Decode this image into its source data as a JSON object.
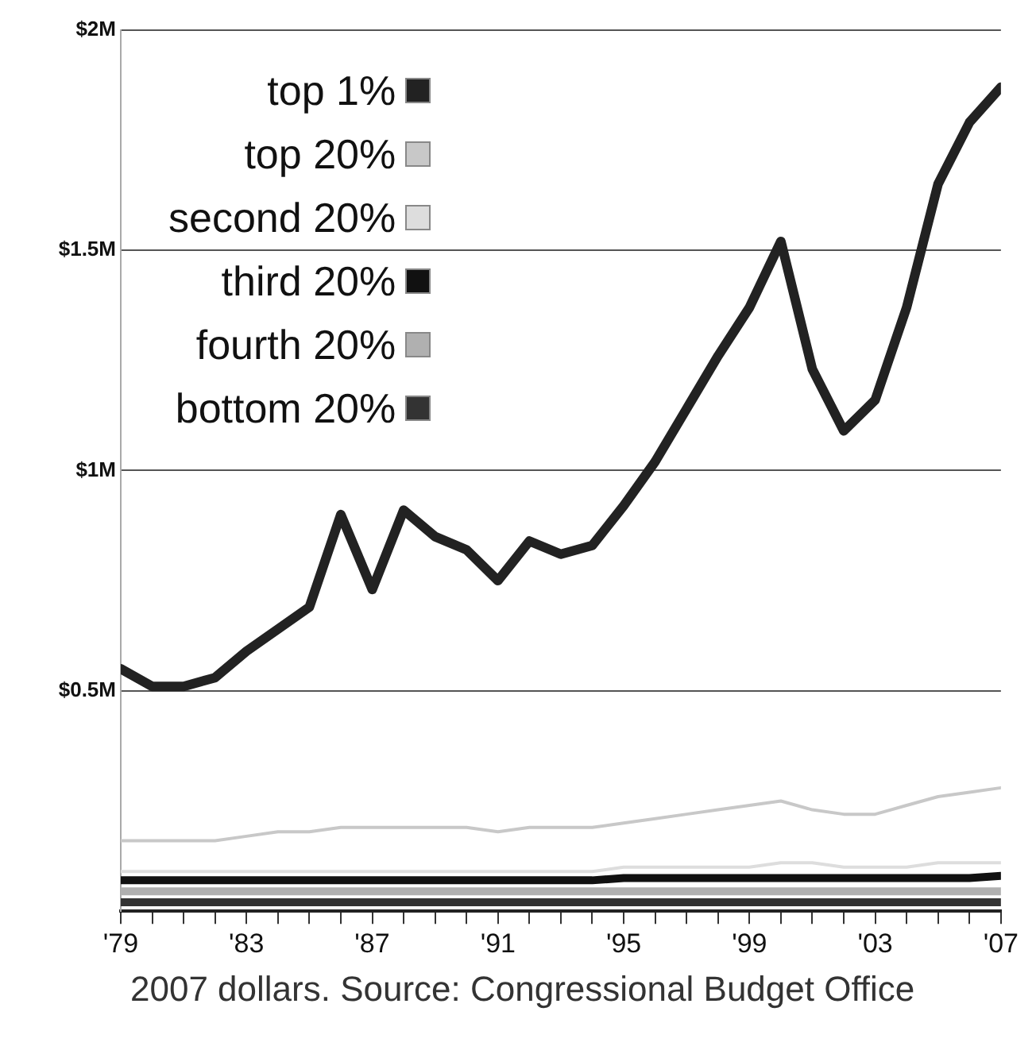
{
  "chart_data": {
    "type": "line",
    "x": [
      1979,
      1980,
      1981,
      1982,
      1983,
      1984,
      1985,
      1986,
      1987,
      1988,
      1989,
      1990,
      1991,
      1992,
      1993,
      1994,
      1995,
      1996,
      1997,
      1998,
      1999,
      2000,
      2001,
      2002,
      2003,
      2004,
      2005,
      2006,
      2007
    ],
    "series": [
      {
        "name": "top 1%",
        "color": "#222222",
        "values": [
          0.55,
          0.51,
          0.51,
          0.53,
          0.59,
          0.64,
          0.69,
          0.9,
          0.73,
          0.91,
          0.85,
          0.82,
          0.75,
          0.84,
          0.81,
          0.83,
          0.92,
          1.02,
          1.14,
          1.26,
          1.37,
          1.52,
          1.23,
          1.09,
          1.16,
          1.37,
          1.65,
          1.79,
          1.87
        ]
      },
      {
        "name": "top 20%",
        "color": "#c8c8c8",
        "values": [
          0.16,
          0.16,
          0.16,
          0.16,
          0.17,
          0.18,
          0.18,
          0.19,
          0.19,
          0.19,
          0.19,
          0.19,
          0.18,
          0.19,
          0.19,
          0.19,
          0.2,
          0.21,
          0.22,
          0.23,
          0.24,
          0.25,
          0.23,
          0.22,
          0.22,
          0.24,
          0.26,
          0.27,
          0.28
        ]
      },
      {
        "name": "second 20%",
        "color": "#dddddd",
        "values": [
          0.09,
          0.09,
          0.09,
          0.09,
          0.09,
          0.09,
          0.09,
          0.09,
          0.09,
          0.09,
          0.09,
          0.09,
          0.09,
          0.09,
          0.09,
          0.09,
          0.1,
          0.1,
          0.1,
          0.1,
          0.1,
          0.11,
          0.11,
          0.1,
          0.1,
          0.1,
          0.11,
          0.11,
          0.11
        ]
      },
      {
        "name": "third 20%",
        "color": "#111111",
        "values": [
          0.07,
          0.07,
          0.07,
          0.07,
          0.07,
          0.07,
          0.07,
          0.07,
          0.07,
          0.07,
          0.07,
          0.07,
          0.07,
          0.07,
          0.07,
          0.07,
          0.075,
          0.075,
          0.075,
          0.075,
          0.075,
          0.075,
          0.075,
          0.075,
          0.075,
          0.075,
          0.075,
          0.075,
          0.08
        ]
      },
      {
        "name": "fourth 20%",
        "color": "#b0b0b0",
        "values": [
          0.045,
          0.045,
          0.045,
          0.045,
          0.045,
          0.045,
          0.045,
          0.045,
          0.045,
          0.045,
          0.045,
          0.045,
          0.045,
          0.045,
          0.045,
          0.045,
          0.045,
          0.045,
          0.045,
          0.045,
          0.045,
          0.045,
          0.045,
          0.045,
          0.045,
          0.045,
          0.045,
          0.045,
          0.045
        ]
      },
      {
        "name": "bottom 20%",
        "color": "#333333",
        "values": [
          0.02,
          0.02,
          0.02,
          0.02,
          0.02,
          0.02,
          0.02,
          0.02,
          0.02,
          0.02,
          0.02,
          0.02,
          0.02,
          0.02,
          0.02,
          0.02,
          0.02,
          0.02,
          0.02,
          0.02,
          0.02,
          0.02,
          0.02,
          0.02,
          0.02,
          0.02,
          0.02,
          0.02,
          0.02
        ]
      }
    ],
    "xlim": [
      1979,
      2007
    ],
    "xticks": [
      {
        "value": 1979,
        "label": "'79"
      },
      {
        "value": 1980,
        "label": null
      },
      {
        "value": 1981,
        "label": null
      },
      {
        "value": 1982,
        "label": null
      },
      {
        "value": 1983,
        "label": "'83"
      },
      {
        "value": 1984,
        "label": null
      },
      {
        "value": 1985,
        "label": null
      },
      {
        "value": 1986,
        "label": null
      },
      {
        "value": 1987,
        "label": "'87"
      },
      {
        "value": 1988,
        "label": null
      },
      {
        "value": 1989,
        "label": null
      },
      {
        "value": 1990,
        "label": null
      },
      {
        "value": 1991,
        "label": "'91"
      },
      {
        "value": 1992,
        "label": null
      },
      {
        "value": 1993,
        "label": null
      },
      {
        "value": 1994,
        "label": null
      },
      {
        "value": 1995,
        "label": "'95"
      },
      {
        "value": 1996,
        "label": null
      },
      {
        "value": 1997,
        "label": null
      },
      {
        "value": 1998,
        "label": null
      },
      {
        "value": 1999,
        "label": "'99"
      },
      {
        "value": 2000,
        "label": null
      },
      {
        "value": 2001,
        "label": null
      },
      {
        "value": 2002,
        "label": null
      },
      {
        "value": 2003,
        "label": "'03"
      },
      {
        "value": 2004,
        "label": null
      },
      {
        "value": 2005,
        "label": null
      },
      {
        "value": 2006,
        "label": null
      },
      {
        "value": 2007,
        "label": "'07"
      }
    ],
    "ylim": [
      0,
      2
    ],
    "yticks": [
      {
        "value": 0.5,
        "label": "$0.5M"
      },
      {
        "value": 1,
        "label": "$1M"
      },
      {
        "value": 1.5,
        "label": "$1.5M"
      },
      {
        "value": 2,
        "label": "$2M"
      }
    ],
    "grid": "y",
    "legend": "top left",
    "marker": "none",
    "line_style": "solid",
    "annotations": [
      "2007 dollars. Source: Congressional Budget Office"
    ]
  }
}
